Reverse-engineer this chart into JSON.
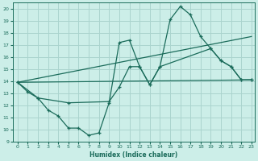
{
  "xlabel": "Humidex (Indice chaleur)",
  "background_color": "#cceee8",
  "grid_color": "#aad4ce",
  "line_color": "#1a6b5a",
  "xlim": [
    0,
    23
  ],
  "ylim": [
    9,
    20.5
  ],
  "yticks": [
    9,
    10,
    11,
    12,
    13,
    14,
    15,
    16,
    17,
    18,
    19,
    20
  ],
  "xticks": [
    0,
    1,
    2,
    3,
    4,
    5,
    6,
    7,
    8,
    9,
    10,
    11,
    12,
    13,
    14,
    15,
    16,
    17,
    18,
    19,
    20,
    21,
    22,
    23
  ],
  "line1_x": [
    0,
    1,
    2,
    3,
    4,
    5,
    6,
    7,
    8,
    9,
    10,
    11,
    12,
    13,
    14,
    15,
    16,
    17,
    18,
    19,
    20,
    21,
    22,
    23
  ],
  "line1_y": [
    13.9,
    13.1,
    12.6,
    11.6,
    11.1,
    10.1,
    10.1,
    9.5,
    9.7,
    12.2,
    17.2,
    17.4,
    15.2,
    13.7,
    15.2,
    19.1,
    20.2,
    19.5,
    17.7,
    16.7,
    15.7,
    15.2,
    14.1,
    14.1
  ],
  "line2_x": [
    0,
    23
  ],
  "line2_y": [
    13.9,
    14.1
  ],
  "line3_x": [
    0,
    23
  ],
  "line3_y": [
    13.9,
    17.7
  ],
  "line4_x": [
    0,
    2,
    5,
    9,
    10,
    11,
    12,
    13,
    14,
    19,
    20,
    21,
    22,
    23
  ],
  "line4_y": [
    13.9,
    12.6,
    12.2,
    12.3,
    13.5,
    15.2,
    15.2,
    13.7,
    15.2,
    16.7,
    15.7,
    15.2,
    14.1,
    14.1
  ]
}
